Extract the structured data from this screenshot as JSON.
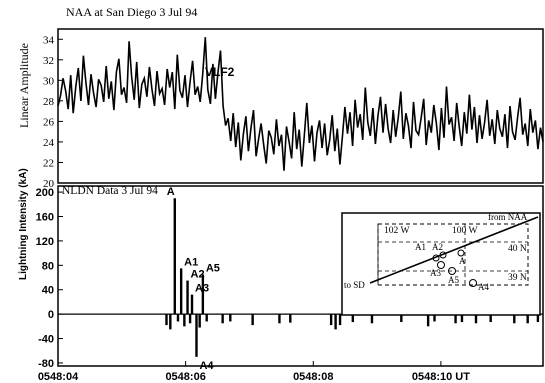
{
  "chart_data": [
    {
      "type": "line",
      "title": "NAA at San Diego   3 Jul 94",
      "ylabel": "Linear  Amplitude",
      "series_label": "VLF2",
      "ylim": [
        20,
        35
      ],
      "yticks": [
        20,
        22,
        24,
        26,
        28,
        30,
        32,
        34
      ],
      "xlim_s": [
        4,
        11.6
      ],
      "values": [
        27.5,
        28.5,
        30.2,
        29,
        27.2,
        30.5,
        26.8,
        29.4,
        31.2,
        28,
        32.4,
        29.8,
        27.6,
        30.6,
        28.8,
        27.4,
        30.1,
        29.5,
        27.9,
        31.4,
        28.2,
        29.9,
        27.1,
        30.8,
        32.1,
        28.6,
        29.3,
        27.8,
        33.8,
        30.4,
        28.1,
        31.8,
        27.3,
        29.6,
        30.2,
        28.4,
        31.3,
        29.1,
        27.5,
        30.9,
        28.7,
        29.2,
        27.6,
        31.1,
        29.3,
        30.8,
        27.2,
        32.5,
        29,
        28.3,
        30.5,
        27.4,
        29.8,
        31.9,
        28.6,
        29.4,
        27.9,
        30.6,
        34.2,
        29.1,
        27.7,
        31.6,
        28.2,
        30.8,
        32.9,
        27.5,
        25.6,
        26.3,
        24.1,
        26.8,
        23.5,
        25.9,
        22.2,
        24.8,
        26.5,
        23.1,
        25.4,
        27.1,
        22.6,
        24.3,
        25.8,
        23.7,
        21.9,
        25.1,
        24.4,
        22.8,
        26.2,
        23.6,
        24.7,
        21.2,
        25.5,
        24,
        22.4,
        26.9,
        23.3,
        25.2,
        21.6,
        24.6,
        27.8,
        23.9,
        25.6,
        22.1,
        24.9,
        26.1,
        23.4,
        25.8,
        22.7,
        24.2,
        26.6,
        23.1,
        25.3,
        21.8,
        24.5,
        27.4,
        24.8,
        26.9,
        23.6,
        28.1,
        25.4,
        26.7,
        24.2,
        29.3,
        25.9,
        24.6,
        27.3,
        23.8,
        26.5,
        28.4,
        24.9,
        27.7,
        25.3,
        23.9,
        27.1,
        24.5,
        26.4,
        28.9,
        24.3,
        26.8,
        25.6,
        23.4,
        27.9,
        25.1,
        24.7,
        26.3,
        28.2,
        23.7,
        26.1,
        24.9,
        27.6,
        25.8,
        23.2,
        27.3,
        24.4,
        29.4,
        25.7,
        26.4,
        24.1,
        27.8,
        25.5,
        23.6,
        26.9,
        24.8,
        28.6,
        25.2,
        27.4,
        23.9,
        26.6,
        24.3,
        25.9,
        28.1,
        24.6,
        26.2,
        23.8,
        27.1,
        25.3,
        24.5,
        26.7,
        23.4,
        27.5,
        25,
        24.2,
        26.4,
        28.3,
        24.7,
        25.8,
        23.6,
        27.2,
        24.9,
        26.1,
        23.3,
        25.4,
        24
      ],
      "annotation": "VLF2"
    },
    {
      "type": "bar",
      "title": "NLDN Data 3 Jul 94",
      "ylabel": "Lightning Intensity (kA)",
      "ylim": [
        -85,
        210
      ],
      "yticks": [
        -80,
        -40,
        0,
        40,
        80,
        120,
        160,
        200
      ],
      "xlim_s": [
        4,
        11.6
      ],
      "xlabels": [
        "0548:04",
        "0548:06",
        "0548:08",
        "0548:10 UT"
      ],
      "xticks_s": [
        4,
        6,
        8,
        10
      ],
      "strokes": [
        {
          "t": 5.83,
          "kA": 190,
          "label": "A"
        },
        {
          "t": 5.93,
          "kA": 75,
          "label": "A1"
        },
        {
          "t": 6.03,
          "kA": 55,
          "label": "A2"
        },
        {
          "t": 6.1,
          "kA": 32,
          "label": "A3"
        },
        {
          "t": 6.27,
          "kA": 65,
          "label": "A5"
        },
        {
          "t": 6.17,
          "kA": -70,
          "label": "A4"
        },
        {
          "t": 5.7,
          "kA": -18
        },
        {
          "t": 5.76,
          "kA": -25
        },
        {
          "t": 5.88,
          "kA": -12
        },
        {
          "t": 5.98,
          "kA": -20
        },
        {
          "t": 6.07,
          "kA": -15
        },
        {
          "t": 6.22,
          "kA": -22
        },
        {
          "t": 6.33,
          "kA": -12
        },
        {
          "t": 6.58,
          "kA": -15
        },
        {
          "t": 6.7,
          "kA": -12
        },
        {
          "t": 7.05,
          "kA": -18
        },
        {
          "t": 7.47,
          "kA": -15
        },
        {
          "t": 7.64,
          "kA": -14
        },
        {
          "t": 8.28,
          "kA": -18
        },
        {
          "t": 8.35,
          "kA": -25
        },
        {
          "t": 8.42,
          "kA": -18
        },
        {
          "t": 8.62,
          "kA": -13
        },
        {
          "t": 8.92,
          "kA": -15
        },
        {
          "t": 9.38,
          "kA": -13
        },
        {
          "t": 9.8,
          "kA": -20
        },
        {
          "t": 9.9,
          "kA": -12
        },
        {
          "t": 10.23,
          "kA": -15
        },
        {
          "t": 10.33,
          "kA": -13
        },
        {
          "t": 10.55,
          "kA": -15
        },
        {
          "t": 10.78,
          "kA": -13
        },
        {
          "t": 11.15,
          "kA": -15
        },
        {
          "t": 11.36,
          "kA": -15
        },
        {
          "t": 11.52,
          "kA": -13
        }
      ],
      "inset": {
        "lon_labels": [
          "102 W",
          "100 W"
        ],
        "lat_labels": [
          "40 N",
          "39 N"
        ],
        "path_labels": [
          "to SD",
          "from NAA"
        ],
        "stroke_labels": [
          "A1",
          "A2",
          "A3",
          "A5",
          "A",
          "A4"
        ]
      }
    }
  ]
}
